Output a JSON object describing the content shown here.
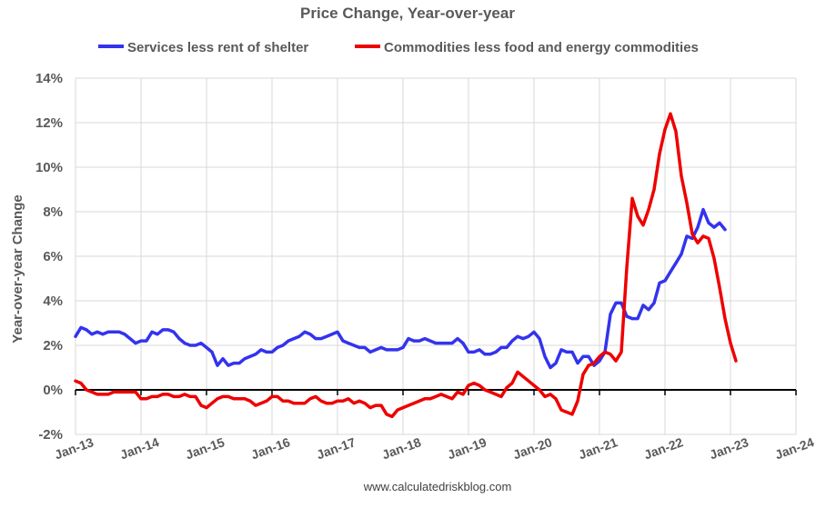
{
  "chart_data": {
    "type": "line",
    "title": "Price Change, Year-over-year",
    "ylabel": "Year-over-year Change",
    "xlabel": "",
    "source": "www.calculatedriskblog.com",
    "ylim": [
      -2,
      14
    ],
    "y_ticks": [
      -2,
      0,
      2,
      4,
      6,
      8,
      10,
      12,
      14
    ],
    "y_tick_labels": [
      "-2%",
      "0%",
      "2%",
      "4%",
      "6%",
      "8%",
      "10%",
      "12%",
      "14%"
    ],
    "x_range_years": [
      2013,
      2024
    ],
    "x_ticks": [
      2013,
      2014,
      2015,
      2016,
      2017,
      2018,
      2019,
      2020,
      2021,
      2022,
      2023,
      2024
    ],
    "x_tick_labels": [
      "Jan-13",
      "Jan-14",
      "Jan-15",
      "Jan-16",
      "Jan-17",
      "Jan-18",
      "Jan-19",
      "Jan-20",
      "Jan-21",
      "Jan-22",
      "Jan-23",
      "Jan-24"
    ],
    "grid": true,
    "legend_position": "top",
    "series": [
      {
        "name": "Services less rent of shelter",
        "color": "#3333ee",
        "start": "2013-01",
        "frequency": "monthly",
        "values": [
          2.4,
          2.8,
          2.7,
          2.5,
          2.6,
          2.5,
          2.6,
          2.6,
          2.6,
          2.5,
          2.3,
          2.1,
          2.2,
          2.2,
          2.6,
          2.5,
          2.7,
          2.7,
          2.6,
          2.3,
          2.1,
          2.0,
          2.0,
          2.1,
          1.9,
          1.7,
          1.1,
          1.4,
          1.1,
          1.2,
          1.2,
          1.4,
          1.5,
          1.6,
          1.8,
          1.7,
          1.7,
          1.9,
          2.0,
          2.2,
          2.3,
          2.4,
          2.6,
          2.5,
          2.3,
          2.3,
          2.4,
          2.5,
          2.6,
          2.2,
          2.1,
          2.0,
          1.9,
          1.9,
          1.7,
          1.8,
          1.9,
          1.8,
          1.8,
          1.8,
          1.9,
          2.3,
          2.2,
          2.2,
          2.3,
          2.2,
          2.1,
          2.1,
          2.1,
          2.1,
          2.3,
          2.1,
          1.7,
          1.7,
          1.8,
          1.6,
          1.6,
          1.7,
          1.9,
          1.9,
          2.2,
          2.4,
          2.3,
          2.4,
          2.6,
          2.3,
          1.5,
          1.0,
          1.2,
          1.8,
          1.7,
          1.7,
          1.2,
          1.5,
          1.5,
          1.1,
          1.3,
          1.7,
          3.4,
          3.9,
          3.9,
          3.3,
          3.2,
          3.2,
          3.8,
          3.6,
          3.9,
          4.8,
          4.9,
          5.3,
          5.7,
          6.1,
          6.9,
          6.8,
          7.3,
          8.1,
          7.5,
          7.3,
          7.5,
          7.2
        ],
        "final_value": 7.2
      },
      {
        "name": "Commodities less food and energy commodities",
        "color": "#ee0000",
        "start": "2013-01",
        "frequency": "monthly",
        "values": [
          0.4,
          0.3,
          0.0,
          -0.1,
          -0.2,
          -0.2,
          -0.2,
          -0.1,
          -0.1,
          -0.1,
          -0.1,
          -0.1,
          -0.4,
          -0.4,
          -0.3,
          -0.3,
          -0.2,
          -0.2,
          -0.3,
          -0.3,
          -0.2,
          -0.3,
          -0.3,
          -0.7,
          -0.8,
          -0.6,
          -0.4,
          -0.3,
          -0.3,
          -0.4,
          -0.4,
          -0.4,
          -0.5,
          -0.7,
          -0.6,
          -0.5,
          -0.3,
          -0.3,
          -0.5,
          -0.5,
          -0.6,
          -0.6,
          -0.6,
          -0.4,
          -0.3,
          -0.5,
          -0.6,
          -0.6,
          -0.5,
          -0.5,
          -0.4,
          -0.6,
          -0.5,
          -0.6,
          -0.8,
          -0.7,
          -0.7,
          -1.1,
          -1.2,
          -0.9,
          -0.8,
          -0.7,
          -0.6,
          -0.5,
          -0.4,
          -0.4,
          -0.3,
          -0.2,
          -0.3,
          -0.4,
          -0.1,
          -0.2,
          0.2,
          0.3,
          0.2,
          0.0,
          -0.1,
          -0.2,
          -0.3,
          0.1,
          0.3,
          0.8,
          0.6,
          0.4,
          0.2,
          0.0,
          -0.3,
          -0.2,
          -0.4,
          -0.9,
          -1.0,
          -1.1,
          -0.5,
          0.7,
          1.1,
          1.2,
          1.5,
          1.7,
          1.6,
          1.3,
          1.7,
          5.5,
          8.6,
          7.8,
          7.4,
          8.1,
          9.0,
          10.6,
          11.7,
          12.4,
          11.6,
          9.6,
          8.4,
          7.0,
          6.6,
          6.9,
          6.8,
          5.9,
          4.6,
          3.2,
          2.1,
          1.3
        ],
        "final_value": 1.3
      }
    ]
  }
}
